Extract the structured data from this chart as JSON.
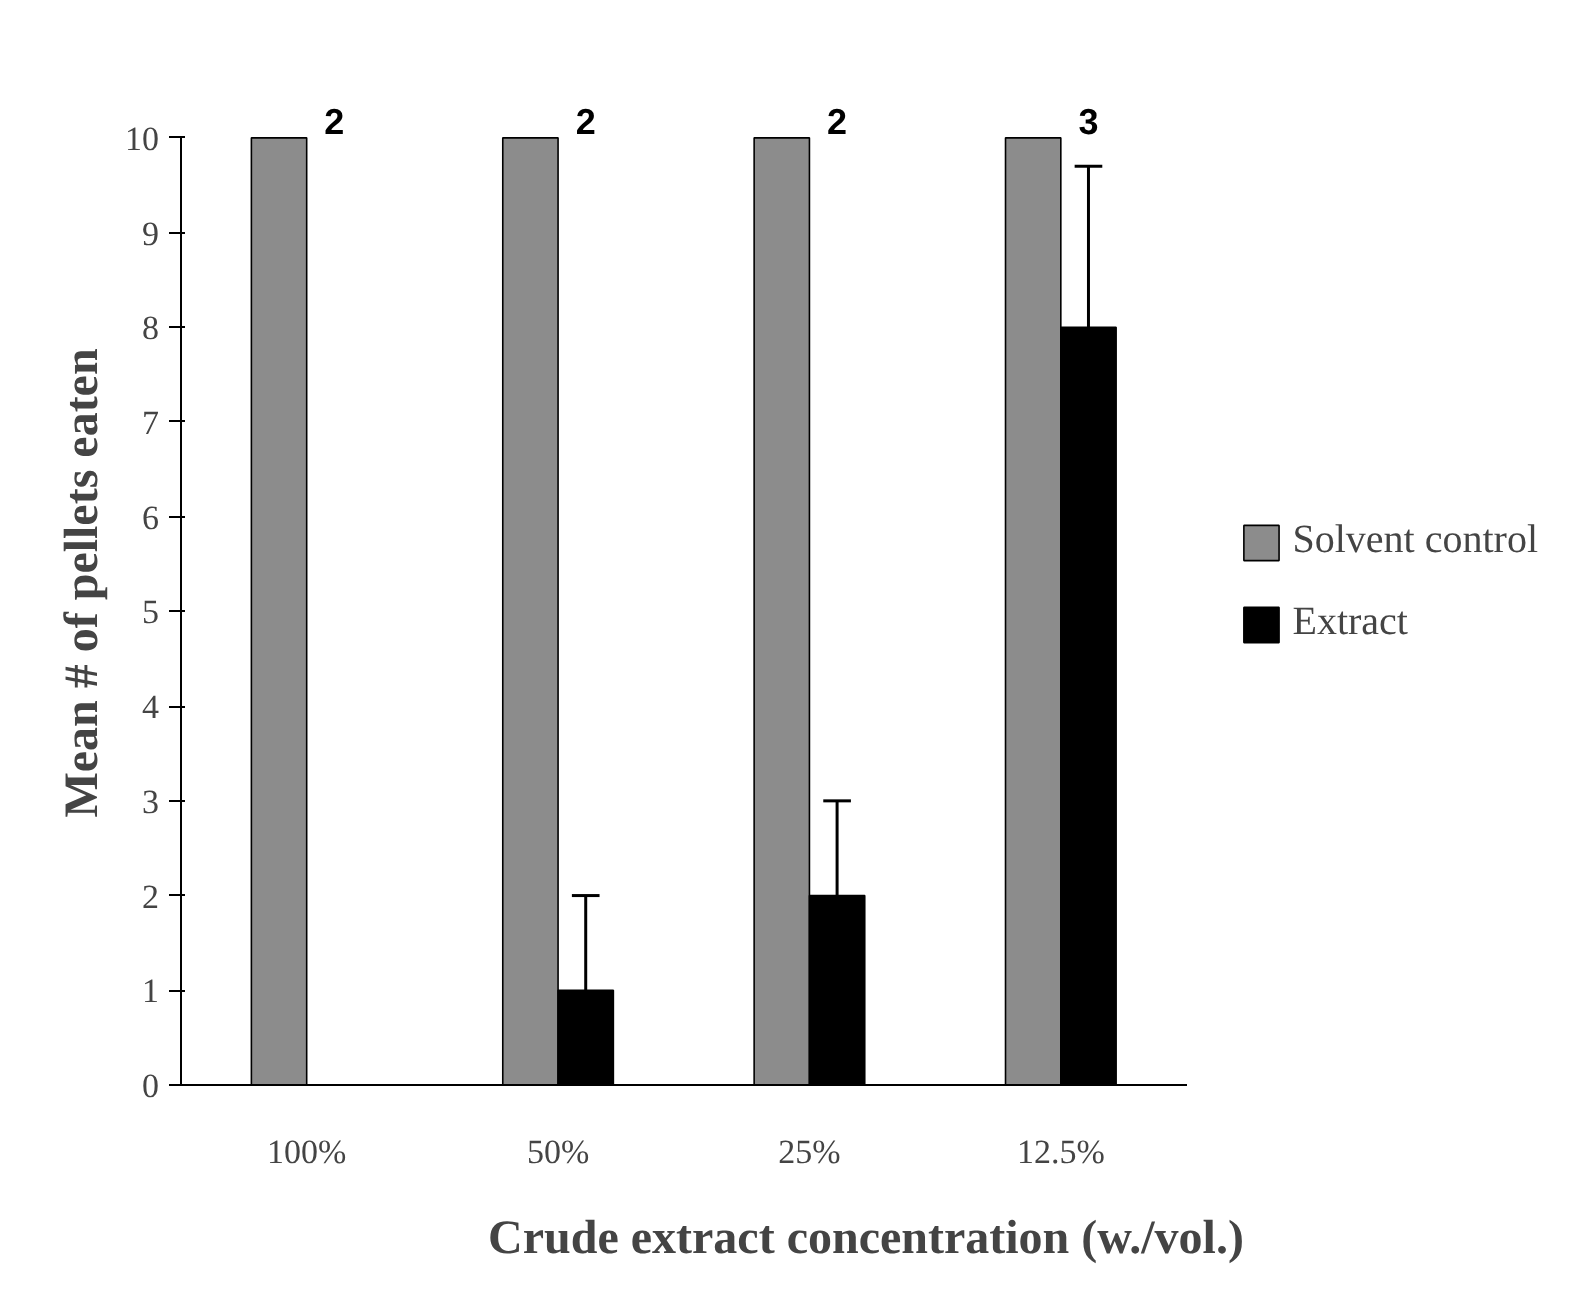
{
  "chart_data": {
    "type": "bar",
    "xlabel": "Crude extract concentration (w./vol.)",
    "ylabel": "Mean # of pellets eaten",
    "categories": [
      "100%",
      "50%",
      "25%",
      "12.5%"
    ],
    "series": [
      {
        "name": "Solvent control",
        "color": "#8c8c8c",
        "values": [
          10,
          10,
          10,
          10
        ]
      },
      {
        "name": "Extract",
        "color": "#000000",
        "values": [
          0,
          1,
          2,
          8
        ],
        "errors": [
          null,
          [
            1,
            2
          ],
          [
            2,
            3
          ],
          [
            8,
            9.7
          ]
        ]
      }
    ],
    "ylim": [
      0,
      10
    ],
    "yticks": [
      0,
      1,
      2,
      3,
      4,
      5,
      6,
      7,
      8,
      9,
      10
    ],
    "grid": false,
    "legend": "right",
    "annotations": [
      {
        "text": "2",
        "x": "100%",
        "y": 10
      },
      {
        "text": "2",
        "x": "50%",
        "y": 10
      },
      {
        "text": "2",
        "x": "25%",
        "y": 10
      },
      {
        "text": "3",
        "x": "12.5%",
        "y": 10
      }
    ]
  }
}
